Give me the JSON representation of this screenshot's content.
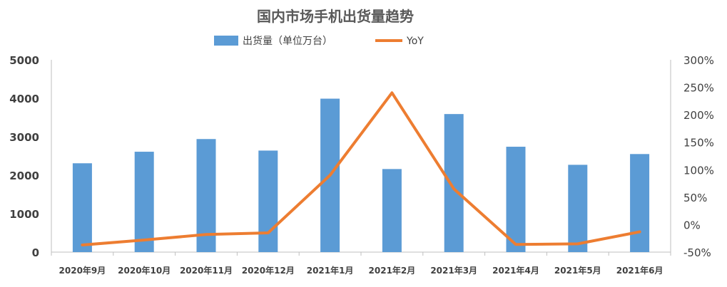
{
  "chart_data": {
    "type": "bar",
    "title": "国内市场手机出货量趋势",
    "categories": [
      "2020年9月",
      "2020年10月",
      "2020年11月",
      "2020年12月",
      "2021年1月",
      "2021年2月",
      "2021年3月",
      "2021年4月",
      "2021年5月",
      "2021年6月"
    ],
    "series": [
      {
        "name": "出货量（单位万台）",
        "type": "bar",
        "axis": "left",
        "color": "#5B9BD5",
        "values": [
          2310,
          2610,
          2940,
          2640,
          3990,
          2160,
          3590,
          2740,
          2270,
          2550
        ]
      },
      {
        "name": "YoY",
        "type": "line",
        "axis": "right",
        "color": "#ED7D31",
        "values": [
          -37,
          -28,
          -18,
          -15,
          90,
          240,
          65,
          -36,
          -35,
          -13
        ]
      }
    ],
    "y_left": {
      "min": 0,
      "max": 5000,
      "ticks": [
        "0",
        "1000",
        "2000",
        "3000",
        "4000",
        "5000"
      ]
    },
    "y_right": {
      "min": -50,
      "max": 300,
      "ticks": [
        "-50%",
        "0%",
        "50%",
        "100%",
        "150%",
        "200%",
        "250%",
        "300%"
      ]
    },
    "grid": false,
    "legend_position": "top-center"
  }
}
